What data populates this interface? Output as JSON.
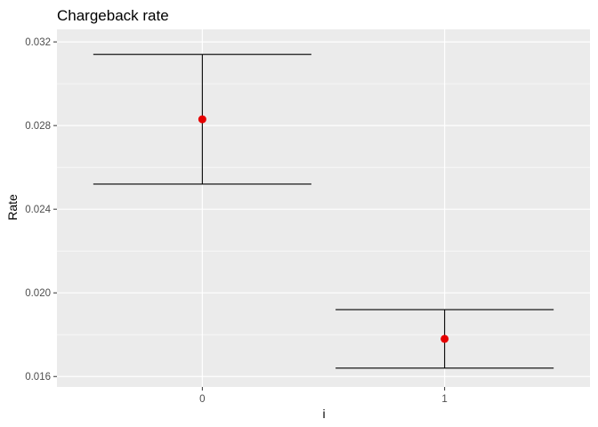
{
  "chart_data": {
    "type": "scatter",
    "title": "Chargeback rate",
    "xlabel": "i",
    "ylabel": "Rate",
    "categories": [
      "0",
      "1"
    ],
    "y_ticks": [
      "0.016",
      "0.020",
      "0.024",
      "0.028",
      "0.032"
    ],
    "ylim": [
      0.0155,
      0.0326
    ],
    "grid": true,
    "points": [
      {
        "x": "0",
        "y": 0.0283,
        "ymin": 0.0252,
        "ymax": 0.0314
      },
      {
        "x": "1",
        "y": 0.0178,
        "ymin": 0.0164,
        "ymax": 0.0192
      }
    ],
    "colors": {
      "panel": "#ebebeb",
      "grid_major": "#ffffff",
      "point": "#e60000",
      "errorbar": "#000000",
      "tick_text": "#4d4d4d"
    }
  }
}
